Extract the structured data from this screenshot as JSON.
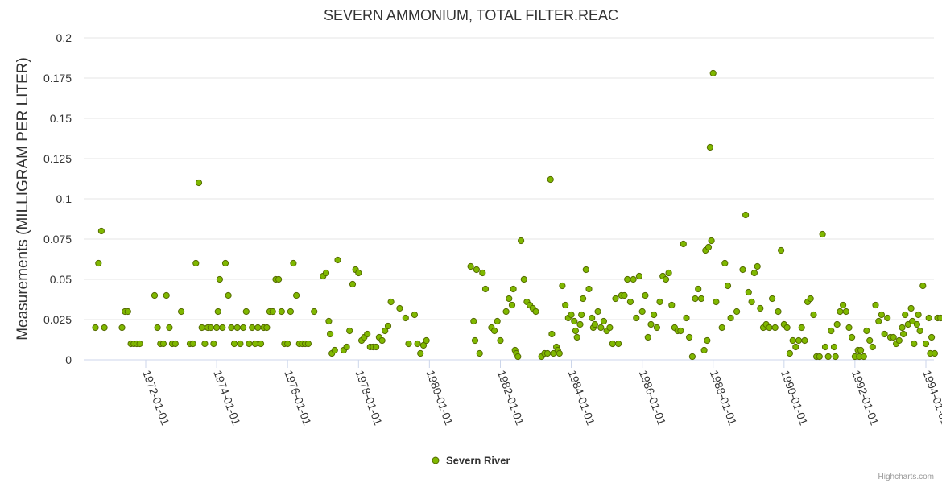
{
  "colors": {
    "series": "#7fb800",
    "series_stroke": "#556b00"
  },
  "chart_data": {
    "type": "scatter",
    "title": "SEVERN AMMONIUM, TOTAL FILTER.REAC",
    "xlabel": "",
    "ylabel": "Measurements (MILLIGRAM PER LITER)",
    "ylim": [
      0,
      0.2
    ],
    "y_ticks": [
      "0",
      "0.025",
      "0.05",
      "0.075",
      "0.1",
      "0.125",
      "0.15",
      "0.175",
      "0.2"
    ],
    "x_ticks": [
      "1972-01-01",
      "1974-01-01",
      "1976-01-01",
      "1978-01-01",
      "1980-01-01",
      "1982-01-01",
      "1984-01-01",
      "1986-01-01",
      "1988-01-01",
      "1990-01-01",
      "1992-01-01",
      "1994-01-01"
    ],
    "grid": true,
    "legend_position": "bottom-center",
    "series": [
      {
        "name": "Severn River",
        "points": [
          [
            "1970-08-01",
            0.02
          ],
          [
            "1970-09-01",
            0.06
          ],
          [
            "1970-10-01",
            0.08
          ],
          [
            "1970-11-01",
            0.02
          ],
          [
            "1971-05-01",
            0.02
          ],
          [
            "1971-06-01",
            0.03
          ],
          [
            "1971-07-01",
            0.03
          ],
          [
            "1971-08-01",
            0.01
          ],
          [
            "1971-09-01",
            0.01
          ],
          [
            "1971-10-01",
            0.01
          ],
          [
            "1971-11-01",
            0.01
          ],
          [
            "1972-04-01",
            0.04
          ],
          [
            "1972-05-01",
            0.02
          ],
          [
            "1972-06-01",
            0.01
          ],
          [
            "1972-07-01",
            0.01
          ],
          [
            "1972-08-01",
            0.04
          ],
          [
            "1972-09-01",
            0.02
          ],
          [
            "1972-10-01",
            0.01
          ],
          [
            "1972-11-01",
            0.01
          ],
          [
            "1973-01-01",
            0.03
          ],
          [
            "1973-04-01",
            0.01
          ],
          [
            "1973-05-01",
            0.01
          ],
          [
            "1973-06-01",
            0.06
          ],
          [
            "1973-07-01",
            0.11
          ],
          [
            "1973-08-01",
            0.02
          ],
          [
            "1973-09-01",
            0.01
          ],
          [
            "1973-10-01",
            0.02
          ],
          [
            "1973-11-01",
            0.02
          ],
          [
            "1973-12-01",
            0.01
          ],
          [
            "1974-01-01",
            0.02
          ],
          [
            "1974-01-15",
            0.03
          ],
          [
            "1974-02-01",
            0.05
          ],
          [
            "1974-03-01",
            0.02
          ],
          [
            "1974-04-01",
            0.06
          ],
          [
            "1974-05-01",
            0.04
          ],
          [
            "1974-06-01",
            0.02
          ],
          [
            "1974-07-01",
            0.01
          ],
          [
            "1974-08-01",
            0.02
          ],
          [
            "1974-09-01",
            0.01
          ],
          [
            "1974-10-01",
            0.02
          ],
          [
            "1974-11-01",
            0.03
          ],
          [
            "1974-12-01",
            0.01
          ],
          [
            "1975-01-01",
            0.02
          ],
          [
            "1975-02-01",
            0.01
          ],
          [
            "1975-03-01",
            0.02
          ],
          [
            "1975-04-01",
            0.01
          ],
          [
            "1975-05-01",
            0.02
          ],
          [
            "1975-06-01",
            0.02
          ],
          [
            "1975-07-01",
            0.03
          ],
          [
            "1975-08-01",
            0.03
          ],
          [
            "1975-09-01",
            0.05
          ],
          [
            "1975-10-01",
            0.05
          ],
          [
            "1975-11-01",
            0.03
          ],
          [
            "1975-12-01",
            0.01
          ],
          [
            "1976-01-01",
            0.01
          ],
          [
            "1976-02-01",
            0.03
          ],
          [
            "1976-03-01",
            0.06
          ],
          [
            "1976-04-01",
            0.04
          ],
          [
            "1976-05-01",
            0.01
          ],
          [
            "1976-06-01",
            0.01
          ],
          [
            "1976-07-01",
            0.01
          ],
          [
            "1976-08-01",
            0.01
          ],
          [
            "1976-10-01",
            0.03
          ],
          [
            "1977-01-01",
            0.052
          ],
          [
            "1977-02-01",
            0.054
          ],
          [
            "1977-03-01",
            0.024
          ],
          [
            "1977-03-15",
            0.016
          ],
          [
            "1977-04-01",
            0.004
          ],
          [
            "1977-05-01",
            0.006
          ],
          [
            "1977-06-01",
            0.062
          ],
          [
            "1977-08-01",
            0.006
          ],
          [
            "1977-09-01",
            0.008
          ],
          [
            "1977-10-01",
            0.018
          ],
          [
            "1977-11-01",
            0.047
          ],
          [
            "1977-12-01",
            0.056
          ],
          [
            "1978-01-01",
            0.054
          ],
          [
            "1978-02-01",
            0.012
          ],
          [
            "1978-03-01",
            0.014
          ],
          [
            "1978-04-01",
            0.016
          ],
          [
            "1978-05-01",
            0.008
          ],
          [
            "1978-06-01",
            0.008
          ],
          [
            "1978-07-01",
            0.008
          ],
          [
            "1978-08-01",
            0.014
          ],
          [
            "1978-09-01",
            0.012
          ],
          [
            "1978-10-01",
            0.018
          ],
          [
            "1978-11-01",
            0.021
          ],
          [
            "1978-12-01",
            0.036
          ],
          [
            "1979-03-01",
            0.032
          ],
          [
            "1979-05-01",
            0.026
          ],
          [
            "1979-06-01",
            0.01
          ],
          [
            "1979-08-01",
            0.028
          ],
          [
            "1979-09-01",
            0.01
          ],
          [
            "1979-10-01",
            0.004
          ],
          [
            "1979-11-01",
            0.009
          ],
          [
            "1979-12-01",
            0.012
          ],
          [
            "1981-03-01",
            0.058
          ],
          [
            "1981-04-01",
            0.024
          ],
          [
            "1981-04-15",
            0.012
          ],
          [
            "1981-05-01",
            0.056
          ],
          [
            "1981-06-01",
            0.004
          ],
          [
            "1981-07-01",
            0.054
          ],
          [
            "1981-08-01",
            0.044
          ],
          [
            "1981-10-01",
            0.02
          ],
          [
            "1981-11-01",
            0.018
          ],
          [
            "1981-12-01",
            0.024
          ],
          [
            "1982-01-01",
            0.012
          ],
          [
            "1982-03-01",
            0.03
          ],
          [
            "1982-04-01",
            0.038
          ],
          [
            "1982-05-01",
            0.034
          ],
          [
            "1982-05-15",
            0.044
          ],
          [
            "1982-06-01",
            0.006
          ],
          [
            "1982-06-15",
            0.004
          ],
          [
            "1982-07-01",
            0.002
          ],
          [
            "1982-08-01",
            0.074
          ],
          [
            "1982-09-01",
            0.05
          ],
          [
            "1982-10-01",
            0.036
          ],
          [
            "1982-11-01",
            0.034
          ],
          [
            "1982-12-01",
            0.032
          ],
          [
            "1983-01-01",
            0.03
          ],
          [
            "1983-03-01",
            0.002
          ],
          [
            "1983-04-01",
            0.004
          ],
          [
            "1983-05-01",
            0.004
          ],
          [
            "1983-06-01",
            0.112
          ],
          [
            "1983-06-15",
            0.016
          ],
          [
            "1983-07-01",
            0.004
          ],
          [
            "1983-08-01",
            0.008
          ],
          [
            "1983-08-15",
            0.006
          ],
          [
            "1983-09-01",
            0.004
          ],
          [
            "1983-10-01",
            0.046
          ],
          [
            "1983-11-01",
            0.034
          ],
          [
            "1983-12-01",
            0.026
          ],
          [
            "1984-01-01",
            0.028
          ],
          [
            "1984-02-01",
            0.024
          ],
          [
            "1984-02-15",
            0.018
          ],
          [
            "1984-03-01",
            0.014
          ],
          [
            "1984-04-01",
            0.022
          ],
          [
            "1984-04-15",
            0.028
          ],
          [
            "1984-05-01",
            0.038
          ],
          [
            "1984-06-01",
            0.056
          ],
          [
            "1984-07-01",
            0.044
          ],
          [
            "1984-08-01",
            0.026
          ],
          [
            "1984-08-15",
            0.02
          ],
          [
            "1984-09-01",
            0.022
          ],
          [
            "1984-10-01",
            0.03
          ],
          [
            "1984-11-01",
            0.02
          ],
          [
            "1984-12-01",
            0.024
          ],
          [
            "1985-01-01",
            0.018
          ],
          [
            "1985-02-01",
            0.02
          ],
          [
            "1985-03-01",
            0.01
          ],
          [
            "1985-04-01",
            0.038
          ],
          [
            "1985-05-01",
            0.01
          ],
          [
            "1985-06-01",
            0.04
          ],
          [
            "1985-07-01",
            0.04
          ],
          [
            "1985-08-01",
            0.05
          ],
          [
            "1985-09-01",
            0.036
          ],
          [
            "1985-10-01",
            0.05
          ],
          [
            "1985-11-01",
            0.026
          ],
          [
            "1985-12-01",
            0.052
          ],
          [
            "1986-01-01",
            0.03
          ],
          [
            "1986-02-01",
            0.04
          ],
          [
            "1986-03-01",
            0.014
          ],
          [
            "1986-04-01",
            0.022
          ],
          [
            "1986-05-01",
            0.028
          ],
          [
            "1986-06-01",
            0.02
          ],
          [
            "1986-07-01",
            0.036
          ],
          [
            "1986-08-01",
            0.052
          ],
          [
            "1986-09-01",
            0.05
          ],
          [
            "1986-10-01",
            0.054
          ],
          [
            "1986-11-01",
            0.034
          ],
          [
            "1986-12-01",
            0.02
          ],
          [
            "1987-01-01",
            0.018
          ],
          [
            "1987-02-01",
            0.018
          ],
          [
            "1987-03-01",
            0.072
          ],
          [
            "1987-04-01",
            0.026
          ],
          [
            "1987-05-01",
            0.014
          ],
          [
            "1987-06-01",
            0.002
          ],
          [
            "1987-07-01",
            0.038
          ],
          [
            "1987-08-01",
            0.044
          ],
          [
            "1987-09-01",
            0.038
          ],
          [
            "1987-10-01",
            0.006
          ],
          [
            "1987-10-15",
            0.068
          ],
          [
            "1987-11-01",
            0.012
          ],
          [
            "1987-11-15",
            0.07
          ],
          [
            "1987-12-01",
            0.132
          ],
          [
            "1987-12-15",
            0.074
          ],
          [
            "1988-01-01",
            0.178
          ],
          [
            "1988-02-01",
            0.036
          ],
          [
            "1988-04-01",
            0.02
          ],
          [
            "1988-05-01",
            0.06
          ],
          [
            "1988-06-01",
            0.046
          ],
          [
            "1988-07-01",
            0.026
          ],
          [
            "1988-09-01",
            0.03
          ],
          [
            "1988-11-01",
            0.056
          ],
          [
            "1988-12-01",
            0.09
          ],
          [
            "1989-01-01",
            0.042
          ],
          [
            "1989-02-01",
            0.036
          ],
          [
            "1989-03-01",
            0.054
          ],
          [
            "1989-04-01",
            0.058
          ],
          [
            "1989-05-01",
            0.032
          ],
          [
            "1989-06-01",
            0.02
          ],
          [
            "1989-07-01",
            0.022
          ],
          [
            "1989-08-01",
            0.02
          ],
          [
            "1989-09-01",
            0.038
          ],
          [
            "1989-10-01",
            0.02
          ],
          [
            "1989-11-01",
            0.03
          ],
          [
            "1989-12-01",
            0.068
          ],
          [
            "1990-01-01",
            0.022
          ],
          [
            "1990-02-01",
            0.02
          ],
          [
            "1990-03-01",
            0.004
          ],
          [
            "1990-04-01",
            0.012
          ],
          [
            "1990-05-01",
            0.008
          ],
          [
            "1990-06-01",
            0.012
          ],
          [
            "1990-07-01",
            0.02
          ],
          [
            "1990-08-01",
            0.012
          ],
          [
            "1990-09-01",
            0.036
          ],
          [
            "1990-10-01",
            0.038
          ],
          [
            "1990-11-01",
            0.028
          ],
          [
            "1990-12-01",
            0.002
          ],
          [
            "1991-01-01",
            0.002
          ],
          [
            "1991-02-01",
            0.078
          ],
          [
            "1991-03-01",
            0.008
          ],
          [
            "1991-04-01",
            0.002
          ],
          [
            "1991-05-01",
            0.018
          ],
          [
            "1991-06-01",
            0.008
          ],
          [
            "1991-06-15",
            0.002
          ],
          [
            "1991-07-01",
            0.022
          ],
          [
            "1991-08-01",
            0.03
          ],
          [
            "1991-09-01",
            0.034
          ],
          [
            "1991-10-01",
            0.03
          ],
          [
            "1991-11-01",
            0.02
          ],
          [
            "1991-12-01",
            0.014
          ],
          [
            "1992-01-01",
            0.002
          ],
          [
            "1992-02-01",
            0.006
          ],
          [
            "1992-02-15",
            0.002
          ],
          [
            "1992-03-01",
            0.006
          ],
          [
            "1992-04-01",
            0.002
          ],
          [
            "1992-05-01",
            0.018
          ],
          [
            "1992-06-01",
            0.012
          ],
          [
            "1992-07-01",
            0.008
          ],
          [
            "1992-08-01",
            0.034
          ],
          [
            "1992-09-01",
            0.024
          ],
          [
            "1992-10-01",
            0.028
          ],
          [
            "1992-11-01",
            0.016
          ],
          [
            "1992-12-01",
            0.026
          ],
          [
            "1993-01-01",
            0.014
          ],
          [
            "1993-02-01",
            0.014
          ],
          [
            "1993-03-01",
            0.01
          ],
          [
            "1993-04-01",
            0.012
          ],
          [
            "1993-05-01",
            0.02
          ],
          [
            "1993-05-15",
            0.016
          ],
          [
            "1993-06-01",
            0.028
          ],
          [
            "1993-07-01",
            0.022
          ],
          [
            "1993-08-01",
            0.032
          ],
          [
            "1993-08-15",
            0.024
          ],
          [
            "1993-09-01",
            0.01
          ],
          [
            "1993-10-01",
            0.022
          ],
          [
            "1993-10-15",
            0.028
          ],
          [
            "1993-11-01",
            0.018
          ],
          [
            "1993-12-01",
            0.046
          ],
          [
            "1994-01-01",
            0.01
          ],
          [
            "1994-02-01",
            0.026
          ],
          [
            "1994-02-15",
            0.004
          ],
          [
            "1994-03-01",
            0.014
          ],
          [
            "1994-04-01",
            0.004
          ],
          [
            "1994-05-01",
            0.026
          ],
          [
            "1994-06-01",
            0.026
          ]
        ]
      }
    ]
  },
  "credits": "Highcharts.com"
}
